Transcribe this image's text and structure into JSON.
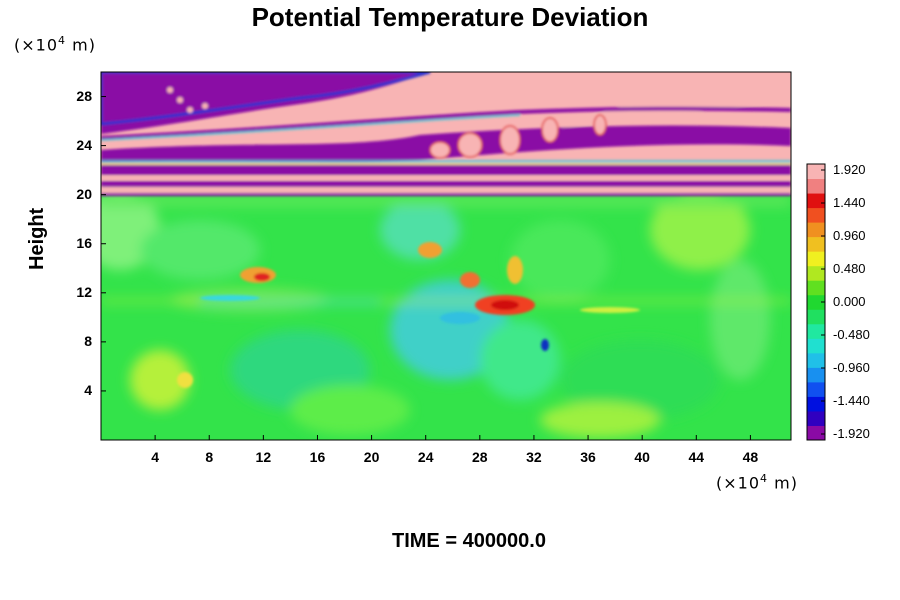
{
  "chart_data": {
    "type": "heatmap",
    "title": "Potential Temperature Deviation",
    "ylabel": "Height",
    "xlabel": "",
    "x_unit": "(×10⁴ m)",
    "y_unit": "(×10⁴ m)",
    "x_ticks": [
      4,
      8,
      12,
      16,
      20,
      24,
      28,
      32,
      36,
      40,
      44,
      48
    ],
    "y_ticks": [
      4,
      8,
      12,
      16,
      20,
      24,
      28
    ],
    "xlim": [
      0,
      51
    ],
    "ylim": [
      0,
      30
    ],
    "colorbar": {
      "labels": [
        "1.920",
        "1.440",
        "0.960",
        "0.480",
        "0.000",
        "-0.480",
        "-0.960",
        "-1.440",
        "-1.920"
      ],
      "min": -1.92,
      "max": 1.92
    },
    "footer": "TIME = 400000.0"
  }
}
